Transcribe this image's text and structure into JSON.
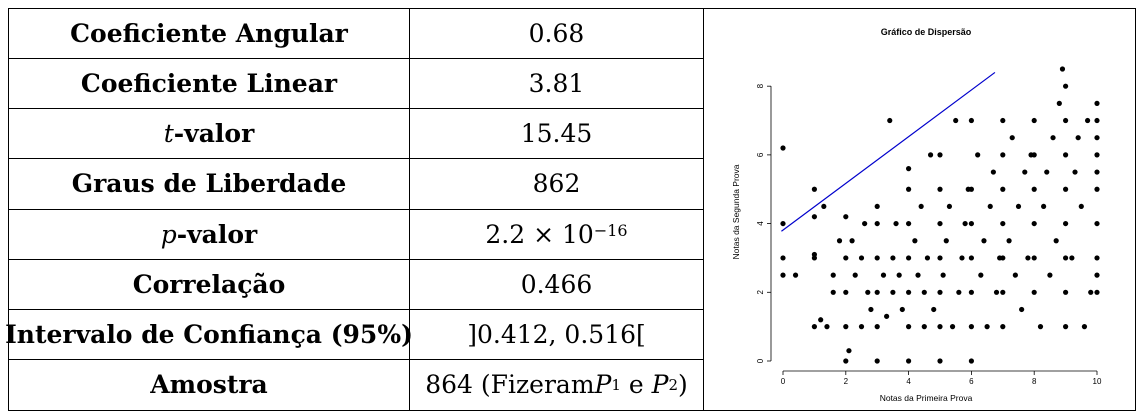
{
  "table": {
    "rows": [
      {
        "label": "Coeficiente Angular",
        "value": "0.68"
      },
      {
        "label": "Coeficiente Linear",
        "value": "3.81"
      },
      {
        "label_italic": "t",
        "label_rest": "-valor",
        "value": "15.45"
      },
      {
        "label": "Graus de Liberdade",
        "value": "862"
      },
      {
        "label_italic": "p",
        "label_rest": "-valor",
        "value_base": "2.2 × 10",
        "value_exp": "−16"
      },
      {
        "label": "Correlação",
        "value": "0.466"
      },
      {
        "label": "Intervalo de Confiança (95%)",
        "value": "]0.412, 0.516["
      },
      {
        "label": "Amostra",
        "value_prefix": "864 (Fizeram ",
        "p1": "P",
        "p1_sub": "1",
        "mid": " e ",
        "p2": "P",
        "p2_sub": "2",
        "value_suffix": ")"
      }
    ]
  },
  "chart_data": {
    "type": "scatter",
    "title": "Gráfico de Dispersão",
    "xlabel": "Notas da Primeira Prova",
    "ylabel": "Notas da Segunda Prova",
    "xlim": [
      0,
      10
    ],
    "ylim": [
      0,
      8.5
    ],
    "xticks": [
      "0",
      "2",
      "4",
      "6",
      "8",
      "10"
    ],
    "yticks": [
      "0",
      "2",
      "4",
      "6",
      "8"
    ],
    "line": {
      "intercept": 3.81,
      "slope": 0.68,
      "color": "#0000cc"
    },
    "points": [
      [
        0,
        6.2
      ],
      [
        0,
        4
      ],
      [
        0,
        3
      ],
      [
        0,
        2.5
      ],
      [
        0.4,
        2.5
      ],
      [
        1,
        5
      ],
      [
        1,
        3
      ],
      [
        1,
        3.1
      ],
      [
        1,
        4.2
      ],
      [
        1.2,
        1.2
      ],
      [
        1,
        1
      ],
      [
        1.4,
        1
      ],
      [
        1.3,
        4.5
      ],
      [
        1.6,
        2.5
      ],
      [
        1.6,
        2
      ],
      [
        1.8,
        3.5
      ],
      [
        2,
        1
      ],
      [
        2,
        0
      ],
      [
        2.1,
        0.3
      ],
      [
        2,
        2
      ],
      [
        2,
        3
      ],
      [
        2,
        4.2
      ],
      [
        2.2,
        3.5
      ],
      [
        2.3,
        2.5
      ],
      [
        2.5,
        1
      ],
      [
        2.5,
        3
      ],
      [
        2.6,
        4
      ],
      [
        2.7,
        2
      ],
      [
        2.8,
        1.5
      ],
      [
        3,
        1
      ],
      [
        3,
        0
      ],
      [
        3,
        2
      ],
      [
        3,
        3
      ],
      [
        3,
        4
      ],
      [
        3,
        4.5
      ],
      [
        3.2,
        2.5
      ],
      [
        3.3,
        1.3
      ],
      [
        3.4,
        7
      ],
      [
        3.5,
        2
      ],
      [
        3.5,
        3
      ],
      [
        3.6,
        4
      ],
      [
        3.7,
        2.5
      ],
      [
        3.8,
        1.5
      ],
      [
        4,
        0
      ],
      [
        4,
        1
      ],
      [
        4,
        2
      ],
      [
        4,
        3
      ],
      [
        4,
        4
      ],
      [
        4,
        5
      ],
      [
        4,
        5.6
      ],
      [
        4.2,
        3.5
      ],
      [
        4.3,
        2.5
      ],
      [
        4.4,
        4.5
      ],
      [
        4.5,
        1
      ],
      [
        4.5,
        2
      ],
      [
        4.6,
        3
      ],
      [
        4.7,
        6
      ],
      [
        4.8,
        1.5
      ],
      [
        5,
        0
      ],
      [
        5,
        1
      ],
      [
        5,
        2
      ],
      [
        5,
        3
      ],
      [
        5,
        4
      ],
      [
        5,
        5
      ],
      [
        5,
        6
      ],
      [
        5.1,
        2.5
      ],
      [
        5.2,
        3.5
      ],
      [
        5.3,
        4.5
      ],
      [
        5.4,
        1
      ],
      [
        5.5,
        7
      ],
      [
        5.6,
        2
      ],
      [
        5.7,
        3
      ],
      [
        5.8,
        4
      ],
      [
        5.9,
        5
      ],
      [
        6,
        0
      ],
      [
        6,
        1
      ],
      [
        6,
        2
      ],
      [
        6,
        3
      ],
      [
        6,
        4
      ],
      [
        6,
        5
      ],
      [
        6,
        7
      ],
      [
        6.2,
        6
      ],
      [
        6.3,
        2.5
      ],
      [
        6.4,
        3.5
      ],
      [
        6.5,
        1
      ],
      [
        6.6,
        4.5
      ],
      [
        6.7,
        5.5
      ],
      [
        6.8,
        2
      ],
      [
        6.9,
        3
      ],
      [
        7,
        1
      ],
      [
        7,
        2
      ],
      [
        7,
        3
      ],
      [
        7,
        4
      ],
      [
        7,
        5
      ],
      [
        7,
        6
      ],
      [
        7,
        7
      ],
      [
        7.2,
        3.5
      ],
      [
        7.3,
        6.5
      ],
      [
        7.4,
        2.5
      ],
      [
        7.5,
        4.5
      ],
      [
        7.6,
        1.5
      ],
      [
        7.7,
        5.5
      ],
      [
        7.8,
        3
      ],
      [
        7.9,
        6
      ],
      [
        8,
        2
      ],
      [
        8,
        3
      ],
      [
        8,
        4
      ],
      [
        8,
        5
      ],
      [
        8,
        6
      ],
      [
        8,
        7
      ],
      [
        8.2,
        1
      ],
      [
        8.3,
        4.5
      ],
      [
        8.4,
        5.5
      ],
      [
        8.5,
        2.5
      ],
      [
        8.6,
        6.5
      ],
      [
        8.7,
        3.5
      ],
      [
        8.8,
        7.5
      ],
      [
        8.9,
        8.5
      ],
      [
        9,
        1
      ],
      [
        9,
        2
      ],
      [
        9,
        3
      ],
      [
        9,
        4
      ],
      [
        9,
        5
      ],
      [
        9,
        6
      ],
      [
        9,
        7
      ],
      [
        9,
        8
      ],
      [
        9.2,
        3
      ],
      [
        9.3,
        5.5
      ],
      [
        9.4,
        6.5
      ],
      [
        9.5,
        4.5
      ],
      [
        9.6,
        1
      ],
      [
        9.7,
        7
      ],
      [
        9.8,
        2
      ],
      [
        10,
        2.5
      ],
      [
        10,
        3
      ],
      [
        10,
        4
      ],
      [
        10,
        5
      ],
      [
        10,
        6
      ],
      [
        10,
        7
      ],
      [
        10,
        7.5
      ],
      [
        10,
        2
      ],
      [
        10,
        5.5
      ],
      [
        10,
        6.5
      ]
    ]
  }
}
